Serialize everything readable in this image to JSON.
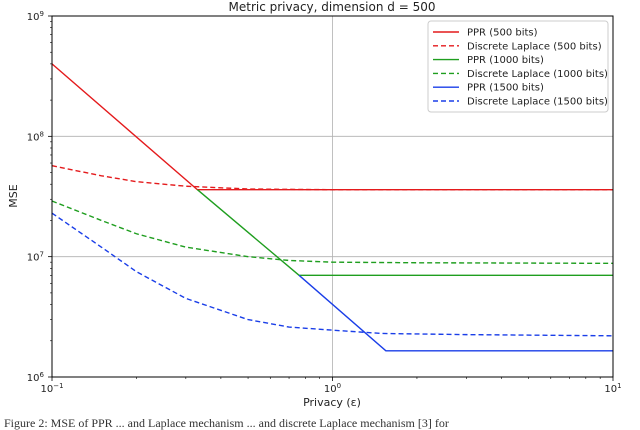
{
  "chart_data": {
    "type": "line",
    "title": "Metric privacy, dimension d = 500",
    "xlabel": "Privacy (ε)",
    "ylabel": "MSE",
    "xscale": "log",
    "yscale": "log",
    "xlim": [
      0.1,
      10
    ],
    "ylim": [
      1000000,
      1000000000
    ],
    "x_ticks": [
      {
        "value": 0.1,
        "label": "10",
        "exp": "−1"
      },
      {
        "value": 1,
        "label": "10",
        "exp": "0"
      },
      {
        "value": 10,
        "label": "10",
        "exp": "1"
      }
    ],
    "y_ticks": [
      {
        "value": 1000000,
        "label": "10",
        "exp": "6"
      },
      {
        "value": 10000000,
        "label": "10",
        "exp": "7"
      },
      {
        "value": 100000000,
        "label": "10",
        "exp": "8"
      },
      {
        "value": 1000000000,
        "label": "10",
        "exp": "9"
      }
    ],
    "grid": true,
    "legend_position": "top-right",
    "series": [
      {
        "name": "PPR (500 bits)",
        "color": "#e41a1c",
        "style": "solid",
        "points": [
          [
            0.1,
            400000000
          ],
          [
            0.33,
            36000000
          ],
          [
            10,
            36000000
          ]
        ]
      },
      {
        "name": "Discrete Laplace (500 bits)",
        "color": "#e41a1c",
        "style": "dashed",
        "points": [
          [
            0.1,
            57000000
          ],
          [
            0.15,
            47000000
          ],
          [
            0.2,
            42000000
          ],
          [
            0.3,
            38500000
          ],
          [
            0.5,
            36500000
          ],
          [
            1,
            36000000
          ],
          [
            10,
            36000000
          ]
        ]
      },
      {
        "name": "PPR (1000 bits)",
        "color": "#1f9e1f",
        "style": "solid",
        "points": [
          [
            0.33,
            36000000
          ],
          [
            0.76,
            7000000
          ],
          [
            10,
            7000000
          ]
        ]
      },
      {
        "name": "Discrete Laplace (1000 bits)",
        "color": "#1f9e1f",
        "style": "dashed",
        "points": [
          [
            0.1,
            29000000
          ],
          [
            0.15,
            20000000
          ],
          [
            0.2,
            15500000
          ],
          [
            0.3,
            12000000
          ],
          [
            0.5,
            10000000
          ],
          [
            0.7,
            9300000
          ],
          [
            1,
            9000000
          ],
          [
            2,
            8900000
          ],
          [
            10,
            8800000
          ]
        ]
      },
      {
        "name": "PPR (1500 bits)",
        "color": "#1a3ee8",
        "style": "solid",
        "points": [
          [
            0.76,
            7000000
          ],
          [
            1.55,
            1650000
          ],
          [
            10,
            1650000
          ]
        ]
      },
      {
        "name": "Discrete Laplace (1500 bits)",
        "color": "#1a3ee8",
        "style": "dashed",
        "points": [
          [
            0.1,
            23000000
          ],
          [
            0.15,
            12000000
          ],
          [
            0.2,
            7500000
          ],
          [
            0.3,
            4500000
          ],
          [
            0.5,
            3000000
          ],
          [
            0.7,
            2600000
          ],
          [
            1,
            2450000
          ],
          [
            1.5,
            2300000
          ],
          [
            3,
            2250000
          ],
          [
            10,
            2200000
          ]
        ]
      }
    ]
  },
  "caption": "Figure 2: MSE of PPR ... and Laplace mechanism ... and discrete Laplace mechanism [3] for"
}
